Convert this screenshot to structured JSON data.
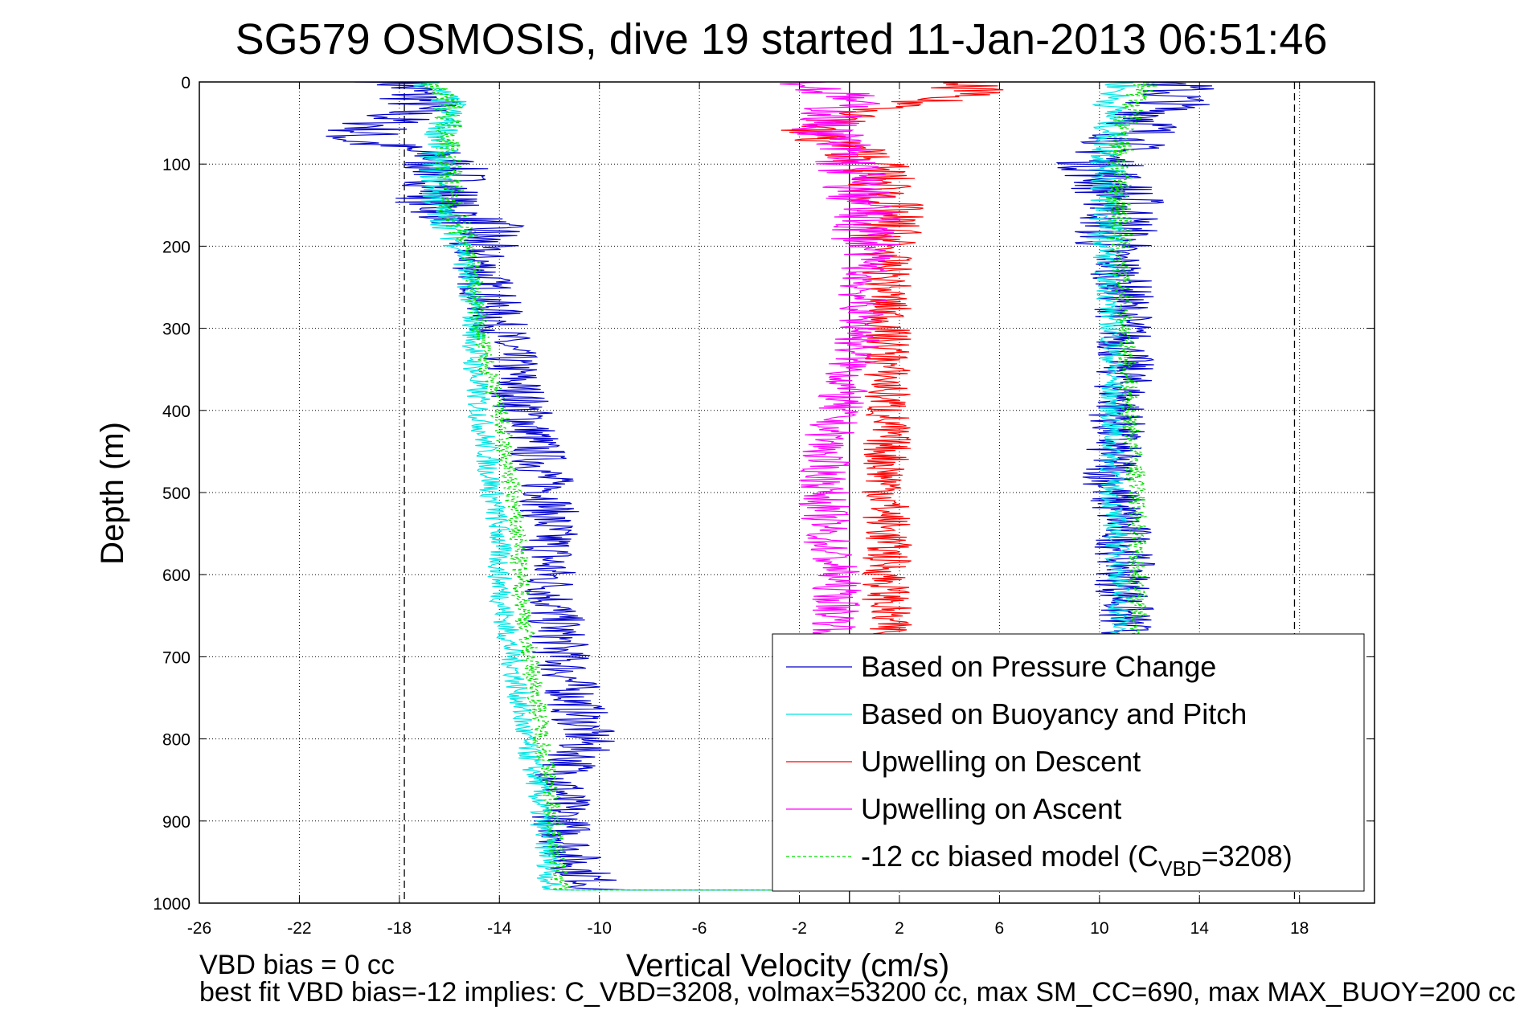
{
  "chart_data": {
    "type": "line",
    "title": "SG579 OSMOSIS, dive 19 started 11-Jan-2013 06:51:46",
    "xlabel": "Vertical Velocity (cm/s)",
    "ylabel": "Depth (m)",
    "xlim": [
      -26,
      21
    ],
    "ylim": [
      0,
      1000
    ],
    "y_reversed": true,
    "grid": true,
    "xticks": [
      -26,
      -22,
      -18,
      -14,
      -10,
      -6,
      -2,
      2,
      6,
      10,
      14,
      18
    ],
    "yticks": [
      0,
      100,
      200,
      300,
      400,
      500,
      600,
      700,
      800,
      900,
      1000
    ],
    "reference_lines": {
      "dashed_x": [
        -17.8,
        17.8
      ],
      "solid_x": [
        0
      ]
    },
    "legend_position": "bottom-right",
    "legend": [
      {
        "label": "Based on Pressure Change",
        "color": "#0000cc",
        "style": "solid"
      },
      {
        "label": "Based on Buoyancy and Pitch",
        "color": "#00e5e5",
        "style": "solid"
      },
      {
        "label": "Upwelling on Descent",
        "color": "#ff0000",
        "style": "solid"
      },
      {
        "label": "Upwelling on Ascent",
        "color": "#ff00ff",
        "style": "solid"
      },
      {
        "label_prefix": "-12 cc biased model (C",
        "label_sub": "VBD",
        "label_suffix": "=3208)",
        "color": "#00dd00",
        "style": "dashed"
      }
    ],
    "series": [
      {
        "name": "Based on Pressure Change",
        "color": "#0000cc",
        "dash": false,
        "noise": 1.2,
        "descent": {
          "depth": [
            0,
            25,
            70,
            90,
            120,
            150,
            180,
            200,
            250,
            300,
            350,
            400,
            450,
            500,
            550,
            600,
            650,
            700,
            750,
            800,
            850,
            900,
            950,
            985
          ],
          "velocity": [
            -18,
            -17,
            -20,
            -16.5,
            -16,
            -16.5,
            -14.5,
            -15,
            -14.5,
            -14,
            -13.5,
            -13,
            -12.5,
            -12,
            -12,
            -12,
            -11.8,
            -11.5,
            -11,
            -10.5,
            -11.5,
            -11.5,
            -11,
            -10
          ]
        },
        "ascent": {
          "depth": [
            0,
            20,
            50,
            100,
            150,
            200,
            250,
            300,
            350,
            400,
            450,
            500,
            550,
            600,
            650,
            700,
            750,
            800,
            850,
            900,
            985
          ],
          "velocity": [
            13,
            13,
            12,
            10,
            11,
            10.5,
            11,
            11,
            11,
            10.8,
            10.5,
            10.5,
            11,
            11,
            11,
            11,
            11,
            11,
            11,
            11,
            11
          ]
        }
      },
      {
        "name": "Based on Buoyancy and Pitch",
        "color": "#00e5e5",
        "dash": false,
        "noise": 0.5,
        "descent": {
          "depth": [
            0,
            25,
            100,
            150,
            200,
            250,
            300,
            350,
            400,
            450,
            500,
            550,
            600,
            650,
            700,
            750,
            800,
            850,
            900,
            950,
            985
          ],
          "velocity": [
            -17,
            -16,
            -16.5,
            -16.5,
            -15.5,
            -15.2,
            -15,
            -15,
            -14.8,
            -14.5,
            -14.3,
            -14,
            -14,
            -13.8,
            -13.5,
            -13.2,
            -13,
            -12.5,
            -12.3,
            -12,
            -12
          ]
        },
        "ascent": {
          "depth": [
            0,
            20,
            50,
            100,
            150,
            200,
            300,
            400,
            500,
            600,
            700,
            800,
            900,
            985
          ],
          "velocity": [
            11,
            10.5,
            10.5,
            10.3,
            10.3,
            10.2,
            10.5,
            10.5,
            10.5,
            10.8,
            10.8,
            10.8,
            10.8,
            10.8
          ]
        }
      },
      {
        "name": "Upwelling on Descent",
        "color": "#ff0000",
        "dash": false,
        "noise": 1.0,
        "depth": [
          0,
          10,
          30,
          60,
          80,
          100,
          150,
          200,
          250,
          300,
          350,
          400,
          450,
          500,
          550,
          600,
          650,
          700,
          750,
          800,
          850,
          900,
          950,
          985
        ],
        "velocity": [
          4,
          5,
          2,
          -2,
          0,
          1,
          1.5,
          1.5,
          1.5,
          1.5,
          1.5,
          1.5,
          1.5,
          1.5,
          1.5,
          1.5,
          1.5,
          1.5,
          1.5,
          1.5,
          1.5,
          1.5,
          1.5,
          1.5
        ]
      },
      {
        "name": "Upwelling on Ascent",
        "color": "#ff00ff",
        "dash": false,
        "noise": 1.0,
        "depth": [
          0,
          20,
          50,
          100,
          150,
          200,
          250,
          300,
          350,
          400,
          450,
          500,
          550,
          600,
          650,
          700,
          750,
          800,
          850,
          900,
          950,
          985
        ],
        "velocity": [
          -2,
          0,
          -1,
          0,
          0.5,
          0.8,
          0.5,
          0.5,
          0,
          -0.5,
          -1,
          -1,
          -1,
          -0.5,
          -0.5,
          -0.5,
          -0.5,
          -0.5,
          -0.5,
          -0.5,
          -0.5,
          -0.5
        ]
      },
      {
        "name": "-12 cc biased model (CVBD=3208)",
        "color": "#00dd00",
        "dash": true,
        "noise": 0.4,
        "descent": {
          "depth": [
            0,
            25,
            100,
            150,
            200,
            250,
            300,
            350,
            400,
            450,
            500,
            550,
            600,
            650,
            700,
            750,
            800,
            850,
            900,
            950,
            985
          ],
          "velocity": [
            -17,
            -16,
            -16,
            -16,
            -15.2,
            -15,
            -14.8,
            -14.5,
            -14,
            -13.8,
            -13.5,
            -13.3,
            -13.2,
            -13,
            -12.8,
            -12.5,
            -12.3,
            -12,
            -11.8,
            -11.7,
            -11.5
          ]
        },
        "ascent": {
          "depth": [
            0,
            20,
            50,
            100,
            200,
            300,
            400,
            500,
            600,
            700,
            800,
            900,
            985
          ],
          "velocity": [
            12,
            11.5,
            11,
            10.8,
            10.8,
            11,
            11.2,
            11.5,
            11.5,
            11.5,
            11.5,
            11.5,
            11.5
          ]
        }
      }
    ]
  },
  "footer": {
    "line1": "VBD bias = 0 cc",
    "line2": "best fit VBD bias=-12 implies: C_VBD=3208, volmax=53200 cc, max SM_CC=690, max MAX_BUOY=200 cc"
  }
}
